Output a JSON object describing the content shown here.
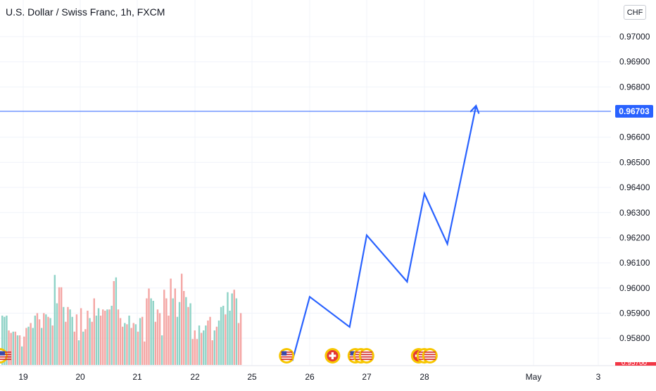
{
  "header": {
    "title": "U.S. Dollar / Swiss Franc, 1h, FXCM",
    "currency_label": "CHF"
  },
  "colors": {
    "up_volume": "#8fd3c7",
    "down_volume": "#f4a6a4",
    "projection_line": "#2962ff",
    "price_line": "#2962ff",
    "current_price_badge": "#2962ff",
    "bottom_badge": "#f23645",
    "grid": "#f0f3fa",
    "axis_text": "#131722"
  },
  "chart_data": {
    "type": "line",
    "title": "U.S. Dollar / Swiss Franc, 1h, FXCM",
    "xlabel": "",
    "ylabel": "",
    "x_tick_labels": [
      "19",
      "20",
      "21",
      "22",
      "25",
      "26",
      "27",
      "28",
      "May",
      "3"
    ],
    "y_tick_labels": [
      "0.97000",
      "0.96900",
      "0.96800",
      "0.96600",
      "0.96500",
      "0.96400",
      "0.96300",
      "0.96200",
      "0.96100",
      "0.96000",
      "0.95900",
      "0.95800"
    ],
    "ylim": [
      0.95705,
      0.97045
    ],
    "grid": true,
    "current_price": {
      "value": 0.96703,
      "label": "0.96703"
    },
    "bottom_price_badge": {
      "label": "0.95700"
    },
    "projection_path": {
      "name": "",
      "points": [
        {
          "x": "25.7",
          "y": 0.9571
        },
        {
          "x": "26.0",
          "y": 0.95965
        },
        {
          "x": "26.7",
          "y": 0.95845
        },
        {
          "x": "27.0",
          "y": 0.9621
        },
        {
          "x": "27.7",
          "y": 0.96025
        },
        {
          "x": "28.0",
          "y": 0.96375
        },
        {
          "x": "28.4",
          "y": 0.96175
        },
        {
          "x": "28.9",
          "y": 0.96725
        }
      ]
    },
    "volume_bars": {
      "name": "",
      "up": [
        true,
        true,
        true,
        false,
        false,
        true,
        false,
        true,
        false,
        true,
        false,
        false,
        true,
        false,
        true,
        true,
        false,
        false,
        true,
        false,
        true,
        false,
        true,
        false,
        true,
        true,
        false,
        false,
        true,
        false,
        false,
        true,
        true,
        false,
        false,
        true,
        false,
        true,
        false,
        false,
        true,
        false,
        false,
        true,
        true,
        false,
        false,
        false,
        true,
        false,
        true,
        false,
        true,
        false,
        false,
        false,
        true,
        false,
        true,
        false,
        false,
        true,
        false,
        true,
        false,
        false,
        false,
        false,
        true,
        true,
        false,
        false,
        false,
        true,
        false,
        false,
        false,
        false,
        true,
        false,
        true,
        true,
        false,
        false,
        true,
        false,
        true,
        false,
        false,
        false,
        true,
        false,
        true,
        true,
        false,
        false,
        false,
        true,
        false,
        true,
        true,
        true,
        false,
        true,
        true,
        true,
        false,
        true,
        false,
        false
      ],
      "relative_values": [
        0.4,
        0.39,
        0.4,
        0.28,
        0.26,
        0.27,
        0.27,
        0.24,
        0.24,
        0.15,
        0.23,
        0.3,
        0.31,
        0.34,
        0.3,
        0.4,
        0.42,
        0.37,
        0.3,
        0.42,
        0.41,
        0.39,
        0.38,
        0.32,
        0.73,
        0.5,
        0.63,
        0.63,
        0.47,
        0.35,
        0.47,
        0.45,
        0.39,
        0.27,
        0.41,
        0.2,
        0.46,
        0.27,
        0.29,
        0.44,
        0.38,
        0.35,
        0.54,
        0.4,
        0.46,
        0.4,
        0.45,
        0.44,
        0.45,
        0.45,
        0.48,
        0.68,
        0.71,
        0.45,
        0.38,
        0.31,
        0.34,
        0.33,
        0.4,
        0.3,
        0.34,
        0.33,
        0.27,
        0.38,
        0.39,
        0.19,
        0.54,
        0.62,
        0.54,
        0.52,
        0.35,
        0.45,
        0.42,
        0.24,
        0.61,
        0.54,
        0.4,
        0.7,
        0.54,
        0.62,
        0.39,
        0.51,
        0.74,
        0.6,
        0.55,
        0.47,
        0.5,
        0.21,
        0.28,
        0.21,
        0.32,
        0.26,
        0.28,
        0.32,
        0.36,
        0.39,
        0.2,
        0.28,
        0.31,
        0.36,
        0.47,
        0.48,
        0.41,
        0.59,
        0.44,
        0.58,
        0.61,
        0.54,
        0.34,
        0.42
      ]
    },
    "event_markers": [
      {
        "x": "24.9",
        "flag": "us-flag"
      },
      {
        "x": "25.6",
        "flag": "us-flag"
      },
      {
        "x": "26.4",
        "flag": "swiss-flag"
      },
      {
        "x": "26.8",
        "flag": "us-flag"
      },
      {
        "x": "27.9",
        "flag": "swiss-flag"
      }
    ]
  }
}
